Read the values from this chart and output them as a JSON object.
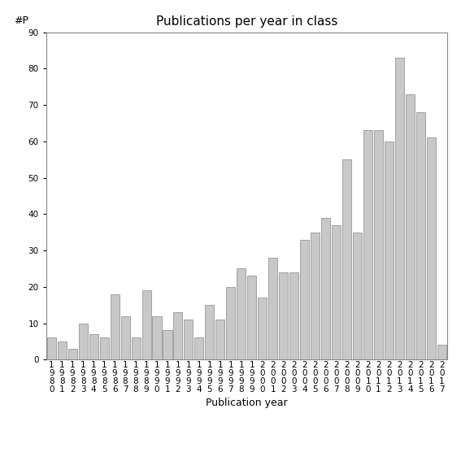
{
  "title": "Publications per year in class",
  "xlabel": "Publication year",
  "ylabel": "#P",
  "years": [
    "1980",
    "1981",
    "1982",
    "1983",
    "1984",
    "1985",
    "1986",
    "1987",
    "1988",
    "1989",
    "1990",
    "1991",
    "1992",
    "1993",
    "1994",
    "1995",
    "1996",
    "1997",
    "1998",
    "1999",
    "2000",
    "2001",
    "2002",
    "2003",
    "2004",
    "2005",
    "2006",
    "2007",
    "2008",
    "2009",
    "2010",
    "2011",
    "2012",
    "2013",
    "2014",
    "2015",
    "2016",
    "2017"
  ],
  "values": [
    6,
    5,
    3,
    10,
    7,
    6,
    18,
    12,
    6,
    19,
    12,
    8,
    13,
    11,
    6,
    15,
    11,
    20,
    25,
    23,
    17,
    28,
    24,
    24,
    33,
    35,
    39,
    37,
    55,
    35,
    63,
    63,
    60,
    83,
    73,
    68,
    61,
    4
  ],
  "bar_color": "#c8c8c8",
  "bar_edge_color": "#888888",
  "ylim": [
    0,
    90
  ],
  "yticks": [
    0,
    10,
    20,
    30,
    40,
    50,
    60,
    70,
    80,
    90
  ],
  "bg_color": "#ffffff",
  "title_fontsize": 11,
  "label_fontsize": 9,
  "tick_fontsize": 7.5
}
